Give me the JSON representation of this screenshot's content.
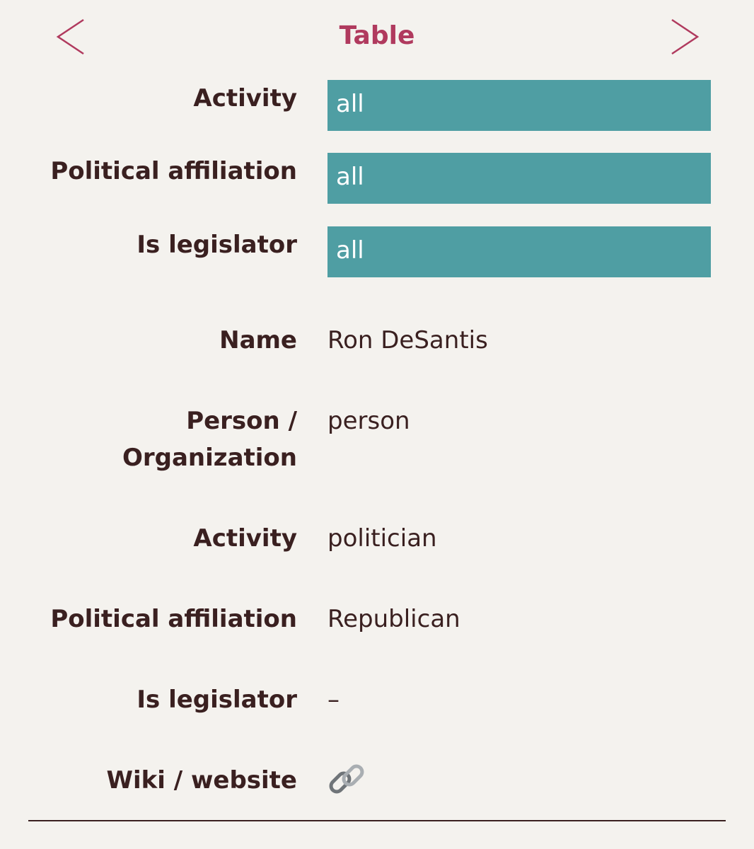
{
  "header": {
    "title": "Table"
  },
  "filters": [
    {
      "label": "Activity",
      "value": "all"
    },
    {
      "label": "Political affiliation",
      "value": "all"
    },
    {
      "label": "Is legislator",
      "value": "all"
    }
  ],
  "record": [
    {
      "label": "Name",
      "value": "Ron DeSantis"
    },
    {
      "label": "Person / Organization",
      "value": "person"
    },
    {
      "label": "Activity",
      "value": "politician"
    },
    {
      "label": "Political affiliation",
      "value": "Republican"
    },
    {
      "label": "Is legislator",
      "value": "–"
    },
    {
      "label": "Wiki / website"
    }
  ]
}
